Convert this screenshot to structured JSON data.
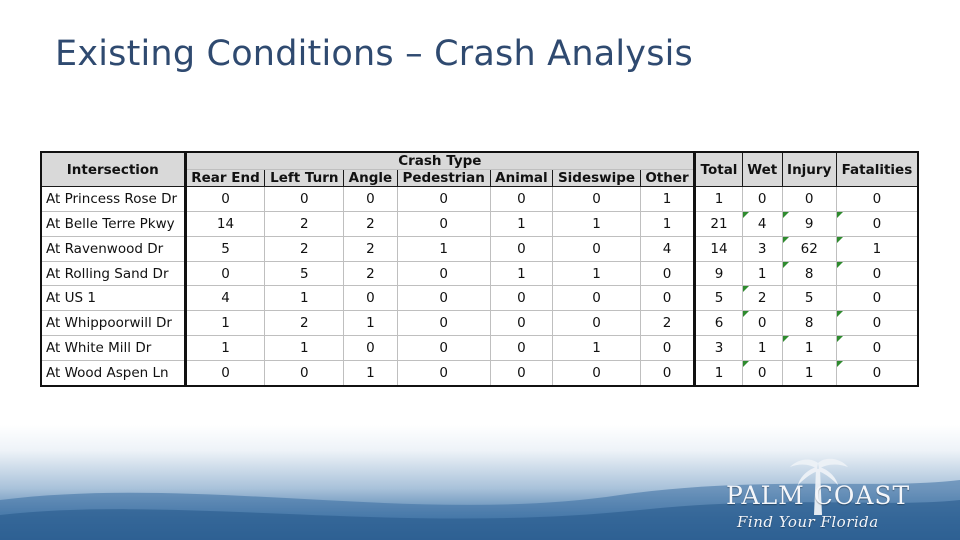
{
  "slide": {
    "title": "Existing Conditions – Crash Analysis"
  },
  "table": {
    "intersection_header": "Intersection",
    "crash_type_header": "Crash Type",
    "crash_type_columns": [
      "Rear End",
      "Left Turn",
      "Angle",
      "Pedestrian",
      "Animal",
      "Sideswipe",
      "Other"
    ],
    "total_header": "Total",
    "wet_header": "Wet",
    "injury_header": "Injury",
    "fatalities_header": "Fatalities",
    "rows": [
      {
        "name": "At Princess Rose Dr",
        "rear_end": "0",
        "left_turn": "0",
        "angle": "0",
        "pedestrian": "0",
        "animal": "0",
        "sideswipe": "0",
        "other": "1",
        "total": "1",
        "wet": "0",
        "injury": "0",
        "fatalities": "0"
      },
      {
        "name": "At Belle Terre Pkwy",
        "rear_end": "14",
        "left_turn": "2",
        "angle": "2",
        "pedestrian": "0",
        "animal": "1",
        "sideswipe": "1",
        "other": "1",
        "total": "21",
        "wet": "4",
        "injury": "9",
        "fatalities": "0"
      },
      {
        "name": "At Ravenwood Dr",
        "rear_end": "5",
        "left_turn": "2",
        "angle": "2",
        "pedestrian": "1",
        "animal": "0",
        "sideswipe": "0",
        "other": "4",
        "total": "14",
        "wet": "3",
        "injury": "62",
        "fatalities": "1"
      },
      {
        "name": "At Rolling Sand Dr",
        "rear_end": "0",
        "left_turn": "5",
        "angle": "2",
        "pedestrian": "0",
        "animal": "1",
        "sideswipe": "1",
        "other": "0",
        "total": "9",
        "wet": "1",
        "injury": "8",
        "fatalities": "0"
      },
      {
        "name": "At US 1",
        "rear_end": "4",
        "left_turn": "1",
        "angle": "0",
        "pedestrian": "0",
        "animal": "0",
        "sideswipe": "0",
        "other": "0",
        "total": "5",
        "wet": "2",
        "injury": "5",
        "fatalities": "0"
      },
      {
        "name": "At Whippoorwill Dr",
        "rear_end": "1",
        "left_turn": "2",
        "angle": "1",
        "pedestrian": "0",
        "animal": "0",
        "sideswipe": "0",
        "other": "2",
        "total": "6",
        "wet": "0",
        "injury": "8",
        "fatalities": "0"
      },
      {
        "name": "At White Mill Dr",
        "rear_end": "1",
        "left_turn": "1",
        "angle": "0",
        "pedestrian": "0",
        "animal": "0",
        "sideswipe": "1",
        "other": "0",
        "total": "3",
        "wet": "1",
        "injury": "1",
        "fatalities": "0"
      },
      {
        "name": "At Wood Aspen Ln",
        "rear_end": "0",
        "left_turn": "0",
        "angle": "1",
        "pedestrian": "0",
        "animal": "0",
        "sideswipe": "0",
        "other": "0",
        "total": "1",
        "wet": "0",
        "injury": "1",
        "fatalities": "0"
      }
    ]
  },
  "logo": {
    "name": "PALM COAST",
    "tagline": "Find Your Florida"
  },
  "colors": {
    "title": "#2f4a70",
    "header_fill": "#d9d9d9",
    "footer_blue": "#2d5f92",
    "cell_flag": "#2e8b2e"
  }
}
